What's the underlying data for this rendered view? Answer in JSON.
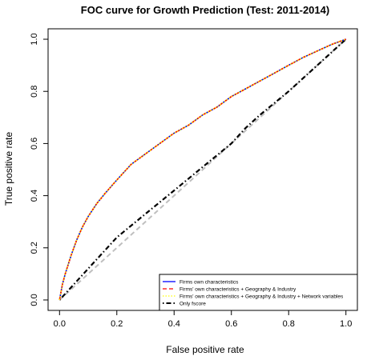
{
  "chart_data": {
    "type": "line",
    "title": "FOC curve for Growth Prediction (Test: 2011-2014)",
    "xlabel": "False positive rate",
    "ylabel": "True positive rate",
    "xlim": [
      -0.04,
      1.04
    ],
    "ylim": [
      -0.04,
      1.04
    ],
    "xticks": [
      "0.0",
      "0.2",
      "0.4",
      "0.6",
      "0.8",
      "1.0"
    ],
    "yticks": [
      "0.0",
      "0.2",
      "0.4",
      "0.6",
      "0.8",
      "1.0"
    ],
    "xtick_values": [
      0,
      0.2,
      0.4,
      0.6,
      0.8,
      1.0
    ],
    "ytick_values": [
      0,
      0.2,
      0.4,
      0.6,
      0.8,
      1.0
    ],
    "legend_position": "bottom-right",
    "series": [
      {
        "name": "Firms own characteristics",
        "color": "#0000ff",
        "style": "solid",
        "x": [
          0,
          0.01,
          0.02,
          0.04,
          0.06,
          0.08,
          0.1,
          0.13,
          0.16,
          0.2,
          0.25,
          0.3,
          0.35,
          0.4,
          0.45,
          0.5,
          0.55,
          0.6,
          0.65,
          0.7,
          0.75,
          0.8,
          0.85,
          0.9,
          0.95,
          1.0
        ],
        "y": [
          0,
          0.06,
          0.1,
          0.17,
          0.23,
          0.28,
          0.32,
          0.37,
          0.41,
          0.46,
          0.52,
          0.56,
          0.6,
          0.64,
          0.67,
          0.71,
          0.74,
          0.78,
          0.81,
          0.84,
          0.87,
          0.9,
          0.93,
          0.955,
          0.98,
          1.0
        ]
      },
      {
        "name": "Firms' own characteristics + Geography & Industry",
        "color": "#ff0000",
        "style": "dashed",
        "x": [
          0,
          0.01,
          0.02,
          0.04,
          0.06,
          0.08,
          0.1,
          0.13,
          0.16,
          0.2,
          0.25,
          0.3,
          0.35,
          0.4,
          0.45,
          0.5,
          0.55,
          0.6,
          0.65,
          0.7,
          0.75,
          0.8,
          0.85,
          0.9,
          0.95,
          1.0
        ],
        "y": [
          0,
          0.06,
          0.1,
          0.17,
          0.23,
          0.28,
          0.32,
          0.37,
          0.41,
          0.46,
          0.52,
          0.56,
          0.6,
          0.64,
          0.67,
          0.71,
          0.74,
          0.78,
          0.81,
          0.84,
          0.87,
          0.9,
          0.93,
          0.955,
          0.98,
          1.0
        ]
      },
      {
        "name": "Firms' own characteristics + Geography & Industry + Network variables",
        "color": "#ffff00",
        "style": "dotted",
        "x": [
          0,
          0.01,
          0.02,
          0.04,
          0.06,
          0.08,
          0.1,
          0.13,
          0.16,
          0.2,
          0.25,
          0.3,
          0.35,
          0.4,
          0.45,
          0.5,
          0.55,
          0.6,
          0.65,
          0.7,
          0.75,
          0.8,
          0.85,
          0.9,
          0.95,
          1.0
        ],
        "y": [
          0,
          0.06,
          0.1,
          0.17,
          0.23,
          0.28,
          0.32,
          0.37,
          0.41,
          0.46,
          0.52,
          0.56,
          0.6,
          0.64,
          0.67,
          0.71,
          0.74,
          0.78,
          0.81,
          0.84,
          0.87,
          0.9,
          0.93,
          0.955,
          0.98,
          1.0
        ]
      },
      {
        "name": "Only fscore",
        "color": "#000000",
        "style": "dotdash",
        "x": [
          0,
          0.05,
          0.1,
          0.15,
          0.2,
          0.3,
          0.4,
          0.5,
          0.6,
          0.65,
          0.7,
          0.8,
          0.9,
          1.0
        ],
        "y": [
          0,
          0.06,
          0.12,
          0.18,
          0.24,
          0.33,
          0.42,
          0.51,
          0.6,
          0.66,
          0.71,
          0.8,
          0.9,
          1.0
        ]
      }
    ],
    "reference_line": {
      "x": [
        0,
        1
      ],
      "y": [
        0,
        1
      ],
      "color": "#bfbfbf",
      "style": "dashed"
    }
  }
}
